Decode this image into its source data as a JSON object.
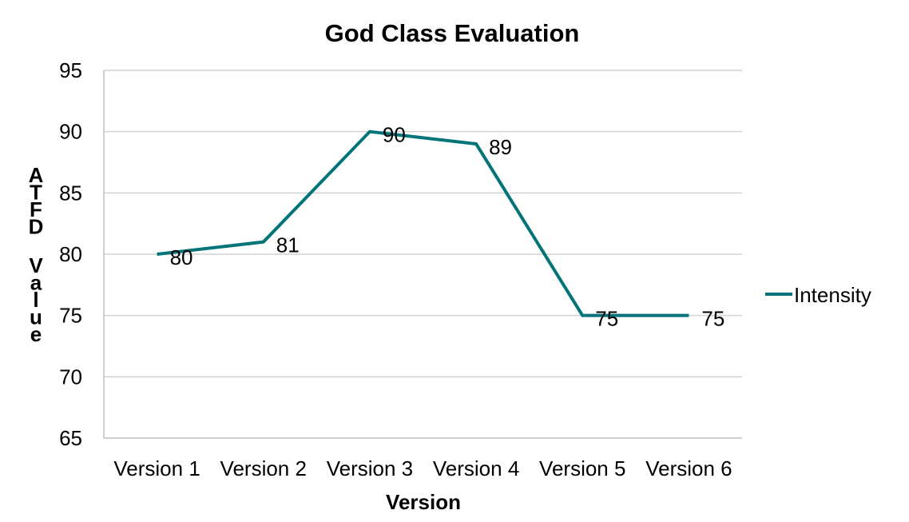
{
  "chart_data": {
    "type": "line",
    "title": "God Class Evaluation",
    "xlabel": "Version",
    "ylabel": "ATFD Value",
    "categories": [
      "Version 1",
      "Version 2",
      "Version 3",
      "Version 4",
      "Version 5",
      "Version 6"
    ],
    "series": [
      {
        "name": "Intensity",
        "values": [
          80,
          81,
          90,
          89,
          75,
          75
        ],
        "color": "#007479"
      }
    ],
    "ylim": [
      65,
      95
    ],
    "yticks": [
      65,
      70,
      75,
      80,
      85,
      90,
      95
    ],
    "grid": true,
    "data_labels": true,
    "legend": "right"
  }
}
